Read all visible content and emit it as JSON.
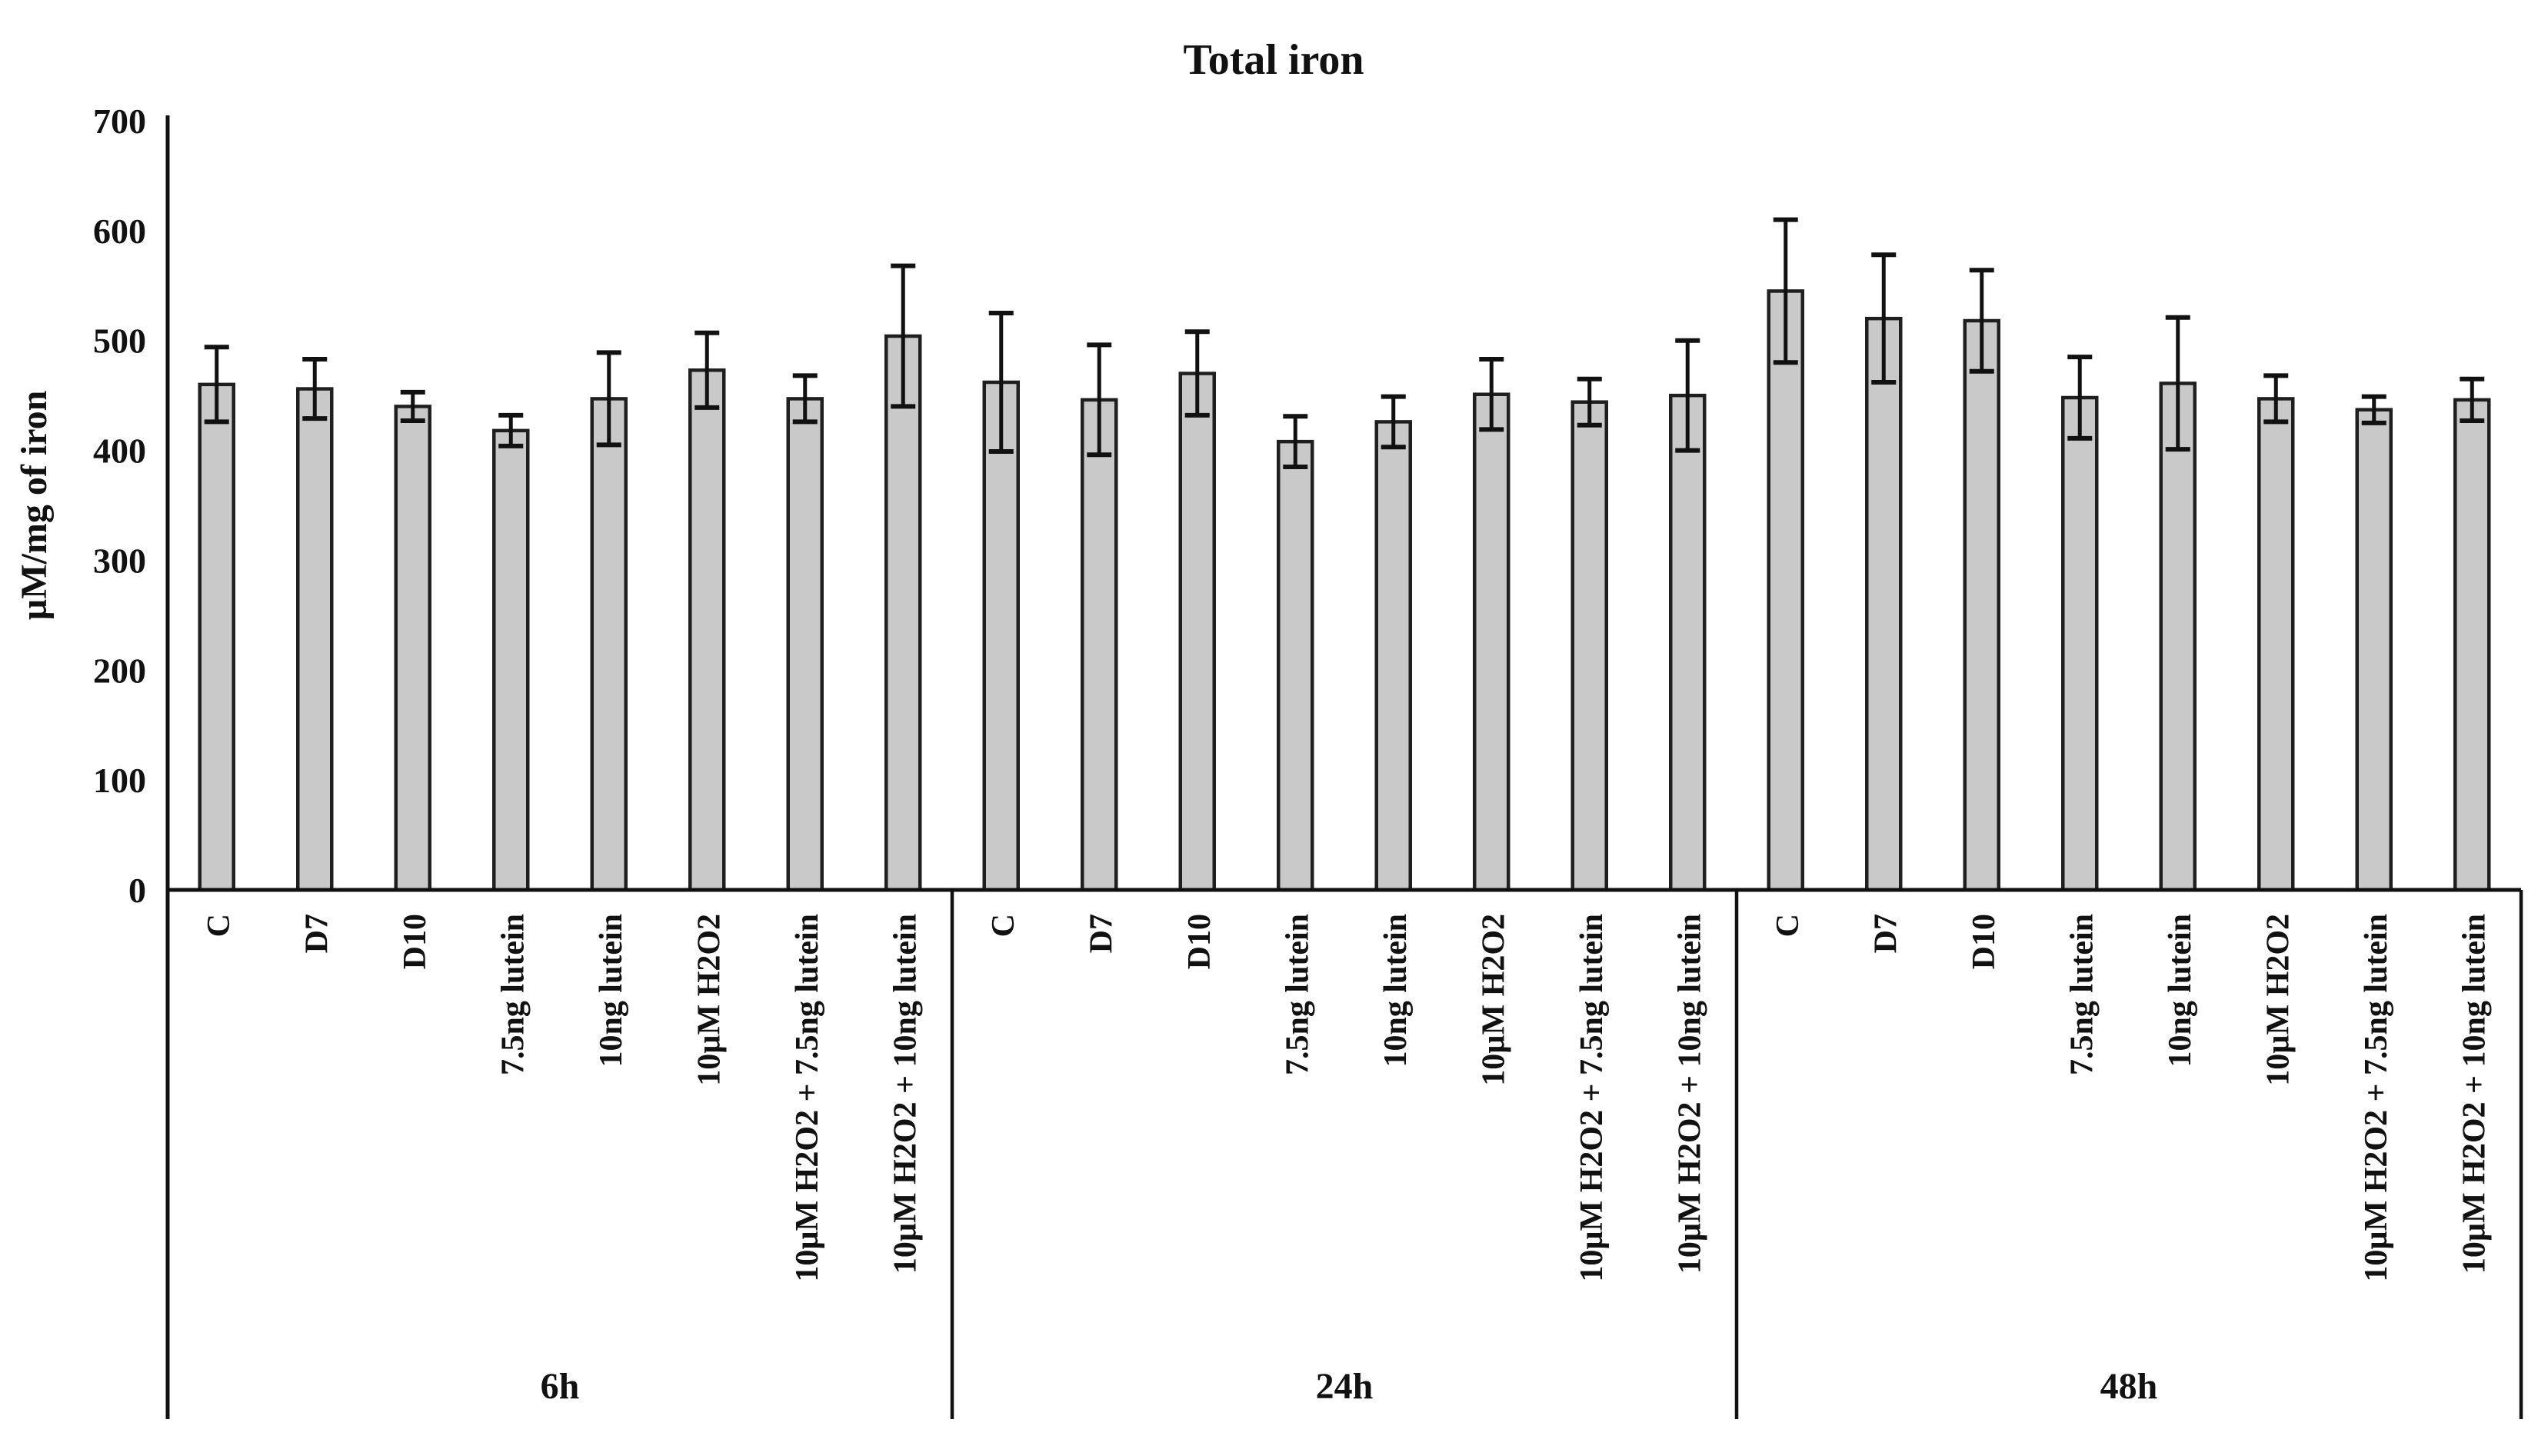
{
  "page": {
    "background": "#ffffff",
    "text_color": "#111111"
  },
  "chart_data": {
    "type": "bar",
    "title": "Total iron",
    "ylabel": "µM/mg of iron",
    "xlabel": "",
    "ylim": [
      0,
      700
    ],
    "yticks": [
      0,
      100,
      200,
      300,
      400,
      500,
      600,
      700
    ],
    "grid": "off",
    "legend": "none",
    "error_bars": true,
    "bar_fill": "#c9c9c9",
    "bar_stroke": "#1f1f1f",
    "axis_color": "#111111",
    "categories": [
      "C",
      "D7",
      "D10",
      "7.5ng lutein",
      "10ng lutein",
      "10µM H2O2",
      "10µM H2O2 + 7.5ng lutein",
      "10µM H2O2 + 10ng lutein"
    ],
    "groups": [
      {
        "label": "6h",
        "values": [
          460,
          456,
          440,
          418,
          447,
          473,
          447,
          504
        ],
        "errors": [
          34,
          27,
          13,
          14,
          42,
          34,
          21,
          64
        ]
      },
      {
        "label": "24h",
        "values": [
          462,
          446,
          470,
          408,
          426,
          451,
          444,
          450
        ],
        "errors": [
          63,
          50,
          38,
          23,
          23,
          32,
          21,
          50
        ]
      },
      {
        "label": "48h",
        "values": [
          545,
          520,
          518,
          448,
          461,
          447,
          437,
          446
        ],
        "errors": [
          65,
          58,
          46,
          37,
          60,
          21,
          12,
          19
        ]
      }
    ]
  }
}
